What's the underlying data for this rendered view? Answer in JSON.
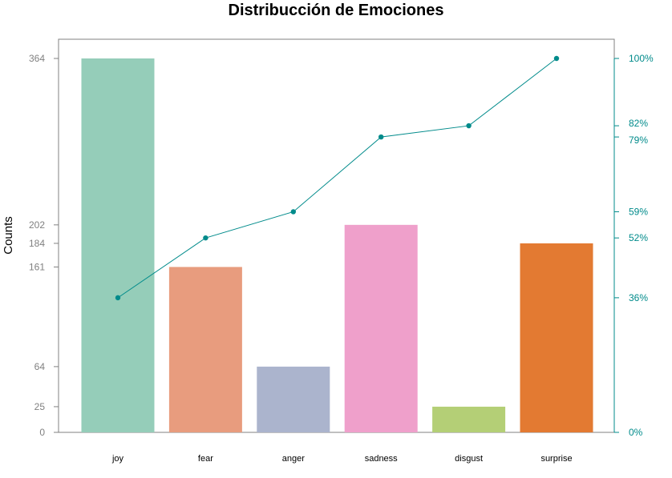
{
  "chart_data": {
    "type": "bar",
    "title": "Distribucción de Emociones",
    "ylabel": "Counts",
    "xlabel": "",
    "categories": [
      "joy",
      "fear",
      "anger",
      "sadness",
      "disgust",
      "surprise"
    ],
    "values": [
      364,
      161,
      64,
      202,
      25,
      184
    ],
    "bar_colors": [
      "#95CDB9",
      "#E89C7E",
      "#ABB4CD",
      "#EFA0CB",
      "#B4CF76",
      "#E37A32"
    ],
    "y_ticks": [
      0,
      25,
      64,
      161,
      184,
      202,
      364
    ],
    "ylim": [
      0,
      364
    ],
    "cumulative_line": {
      "values": [
        36,
        52,
        59,
        79,
        82,
        100
      ],
      "y_ticks": [
        "0%",
        "36%",
        "52%",
        "59%",
        "79%",
        "82%",
        "100%"
      ],
      "tick_values": [
        0,
        36,
        52,
        59,
        79,
        82,
        100
      ],
      "color": "#008B8B"
    },
    "axis_color": "#808080",
    "grid": false,
    "legend": "none"
  }
}
